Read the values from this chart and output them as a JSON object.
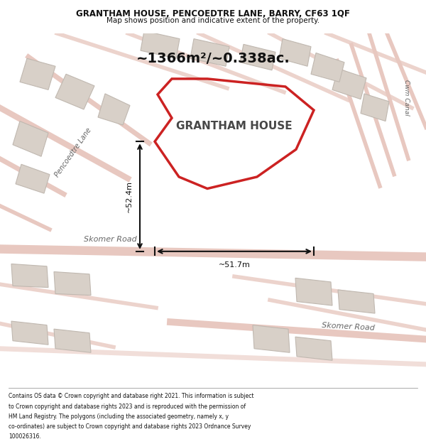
{
  "title_line1": "GRANTHAM HOUSE, PENCOEDTRE LANE, BARRY, CF63 1QF",
  "title_line2": "Map shows position and indicative extent of the property.",
  "area_label": "~1366m²/~0.338ac.",
  "property_label": "GRANTHAM HOUSE",
  "dim_vertical": "~52.4m",
  "dim_horizontal": "~51.7m",
  "road_label1": "Skomer Road",
  "road_label2": "Skomer Road",
  "lane_label": "Pencoedtre Lane",
  "canal_label": "Cwm Canal",
  "footer_lines": [
    "Contains OS data © Crown copyright and database right 2021. This information is subject",
    "to Crown copyright and database rights 2023 and is reproduced with the permission of",
    "HM Land Registry. The polygons (including the associated geometry, namely x, y",
    "co-ordinates) are subject to Crown copyright and database rights 2023 Ordnance Survey",
    "100026316."
  ],
  "map_bg": "#f5f0eb",
  "road_color": "#e8c8c0",
  "property_outline_color": "#cc2222",
  "building_fill": "#d8d0c8",
  "building_edge": "#c0b8b0",
  "dim_color": "#111111",
  "title_color": "#111111",
  "footer_color": "#111111"
}
